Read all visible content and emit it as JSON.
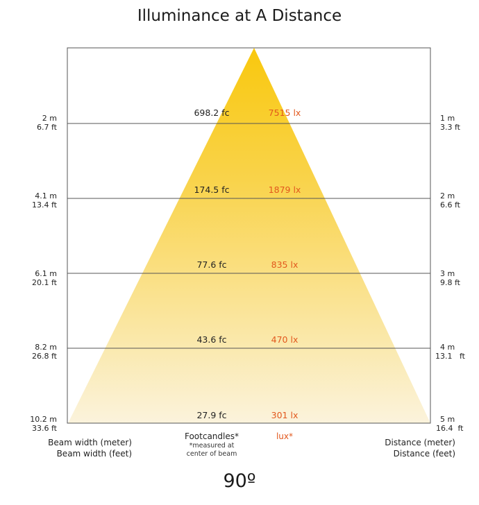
{
  "title": "Illuminance at A Distance",
  "angle": "90º",
  "rows": [
    {
      "beam_m": "2 m",
      "beam_ft": "6.7 ft",
      "fc": "698.2 fc",
      "lux": "7515 lx",
      "dist_m": "1  m",
      "dist_ft": "3.3 ft"
    },
    {
      "beam_m": "4.1 m",
      "beam_ft": "13.4 ft",
      "fc": "174.5 fc",
      "lux": "1879 lx",
      "dist_m": "2 m",
      "dist_ft": "6.6 ft"
    },
    {
      "beam_m": "6.1 m",
      "beam_ft": "20.1 ft",
      "fc": "77.6 fc",
      "lux": "835 lx",
      "dist_m": "3 m",
      "dist_ft": "9.8 ft"
    },
    {
      "beam_m": "8.2 m",
      "beam_ft": "26.8 ft",
      "fc": "43.6 fc",
      "lux": "470 lx",
      "dist_m": "4 m",
      "dist_ft": "13.1   ft"
    },
    {
      "beam_m": "10.2 m",
      "beam_ft": "33.6 ft",
      "fc": "27.9 fc",
      "lux": "301 lx",
      "dist_m": "5 m",
      "dist_ft": "16.4  ft"
    }
  ],
  "footer": {
    "beam_width_meter": "Beam width (meter)",
    "beam_width_feet": "Beam width (feet)",
    "footcandles": "Footcandles*",
    "footcandles_note_1": "*measured at",
    "footcandles_note_2": "center of beam",
    "lux": "lux*",
    "distance_meter": "Distance (meter)",
    "distance_feet": "Distance (feet)"
  },
  "colors": {
    "beam_top": "#f9c80e",
    "beam_bottom": "#fbf3dc",
    "lux_text": "#e2581d",
    "lines": "#555555"
  }
}
